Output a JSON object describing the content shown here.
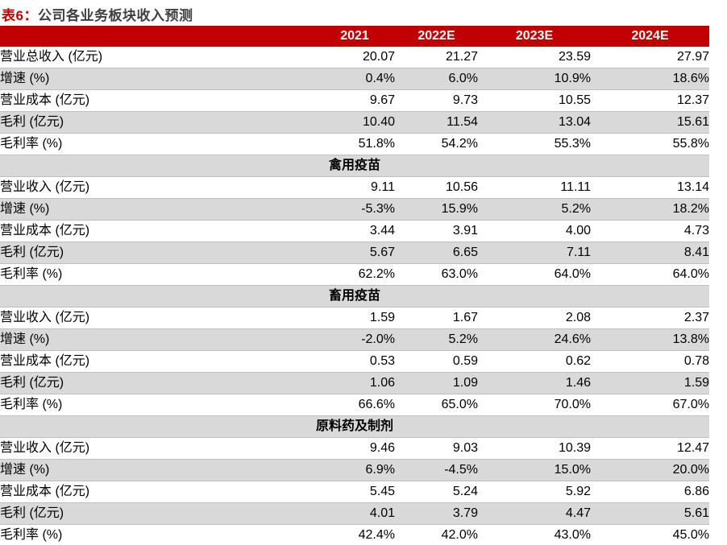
{
  "title": {
    "prefix": "表6：",
    "text": "公司各业务板块收入预测"
  },
  "colors": {
    "header_bg": "#C00000",
    "header_text": "#FFFFFF",
    "stripe_bg": "#D9D9D9",
    "row_border": "#BFBFBF",
    "title_prefix": "#C00000",
    "title_text": "#404040"
  },
  "chart_data": {
    "type": "table",
    "title": "表6：公司各业务板块收入预测",
    "columns": [
      "",
      "2021",
      "2022E",
      "2023E",
      "2024E"
    ],
    "sections": [
      {
        "name": "",
        "rows": [
          {
            "label": "营业总收入 (亿元)",
            "values": [
              "20.07",
              "21.27",
              "23.59",
              "27.97"
            ]
          },
          {
            "label": "增速 (%)",
            "values": [
              "0.4%",
              "6.0%",
              "10.9%",
              "18.6%"
            ]
          },
          {
            "label": "营业成本 (亿元)",
            "values": [
              "9.67",
              "9.73",
              "10.55",
              "12.37"
            ]
          },
          {
            "label": "毛利 (亿元)",
            "values": [
              "10.40",
              "11.54",
              "13.04",
              "15.61"
            ]
          },
          {
            "label": "毛利率 (%)",
            "values": [
              "51.8%",
              "54.2%",
              "55.3%",
              "55.8%"
            ]
          }
        ]
      },
      {
        "name": "禽用疫苗",
        "rows": [
          {
            "label": "营业收入 (亿元)",
            "values": [
              "9.11",
              "10.56",
              "11.11",
              "13.14"
            ]
          },
          {
            "label": "增速 (%)",
            "values": [
              "-5.3%",
              "15.9%",
              "5.2%",
              "18.2%"
            ]
          },
          {
            "label": "营业成本 (亿元)",
            "values": [
              "3.44",
              "3.91",
              "4.00",
              "4.73"
            ]
          },
          {
            "label": "毛利 (亿元)",
            "values": [
              "5.67",
              "6.65",
              "7.11",
              "8.41"
            ]
          },
          {
            "label": "毛利率 (%)",
            "values": [
              "62.2%",
              "63.0%",
              "64.0%",
              "64.0%"
            ]
          }
        ]
      },
      {
        "name": "畜用疫苗",
        "rows": [
          {
            "label": "营业收入 (亿元)",
            "values": [
              "1.59",
              "1.67",
              "2.08",
              "2.37"
            ]
          },
          {
            "label": "增速 (%)",
            "values": [
              "-2.0%",
              "5.2%",
              "24.6%",
              "13.8%"
            ]
          },
          {
            "label": "营业成本 (亿元)",
            "values": [
              "0.53",
              "0.59",
              "0.62",
              "0.78"
            ]
          },
          {
            "label": "毛利 (亿元)",
            "values": [
              "1.06",
              "1.09",
              "1.46",
              "1.59"
            ]
          },
          {
            "label": "毛利率 (%)",
            "values": [
              "66.6%",
              "65.0%",
              "70.0%",
              "67.0%"
            ]
          }
        ]
      },
      {
        "name": "原料药及制剂",
        "rows": [
          {
            "label": "营业收入 (亿元)",
            "values": [
              "9.46",
              "9.03",
              "10.39",
              "12.47"
            ]
          },
          {
            "label": "增速 (%)",
            "values": [
              "6.9%",
              "-4.5%",
              "15.0%",
              "20.0%"
            ]
          },
          {
            "label": "营业成本 (亿元)",
            "values": [
              "5.45",
              "5.24",
              "5.92",
              "6.86"
            ]
          },
          {
            "label": "毛利 (亿元)",
            "values": [
              "4.01",
              "3.79",
              "4.47",
              "5.61"
            ]
          },
          {
            "label": "毛利率 (%)",
            "values": [
              "42.4%",
              "42.0%",
              "43.0%",
              "45.0%"
            ]
          }
        ]
      }
    ]
  }
}
